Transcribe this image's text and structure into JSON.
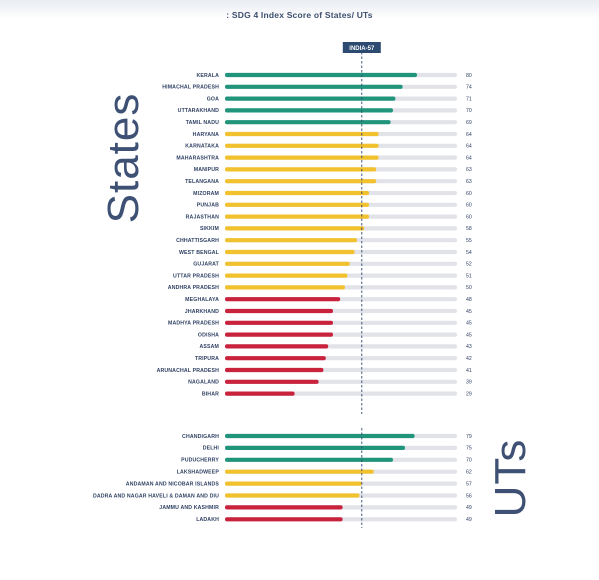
{
  "chart_data": {
    "type": "bar",
    "orientation": "horizontal",
    "title": ": SDG 4 Index Score of States/ UTs",
    "xlim": [
      0,
      100
    ],
    "reference_line": {
      "label": "INDIA-57",
      "value": 57
    },
    "colors": {
      "achiever": "#21957c",
      "front_runner": "#f2c12e",
      "performer": "#c8223d",
      "track": "#e1e3e8",
      "reference": "#2d4a70"
    },
    "groups": [
      {
        "name": "States",
        "categories": [
          "KERALA",
          "HIMACHAL PRADESH",
          "GOA",
          "UTTARAKHAND",
          "TAMIL NADU",
          "HARYANA",
          "KARNATAKA",
          "MAHARASHTRA",
          "MANIPUR",
          "TELANGANA",
          "MIZORAM",
          "PUNJAB",
          "RAJASTHAN",
          "SIKKIM",
          "CHHATTISGARH",
          "WEST BENGAL",
          "GUJARAT",
          "UTTAR PRADESH",
          "ANDHRA PRADESH",
          "MEGHALAYA",
          "JHARKHAND",
          "MADHYA PRADESH",
          "ODISHA",
          "ASSAM",
          "TRIPURA",
          "ARUNACHAL PRADESH",
          "NAGALAND",
          "BIHAR"
        ],
        "values": [
          80,
          74,
          71,
          70,
          69,
          64,
          64,
          64,
          63,
          63,
          60,
          60,
          60,
          58,
          55,
          54,
          52,
          51,
          50,
          48,
          45,
          45,
          45,
          43,
          42,
          41,
          39,
          29
        ]
      },
      {
        "name": "UTs",
        "categories": [
          "CHANDIGARH",
          "DELHI",
          "PUDUCHERRY",
          "LAKSHADWEEP",
          "ANDAMAN AND NICOBAR ISLANDS",
          "DADRA AND NAGAR HAVELI & DAMAN AND DIU",
          "JAMMU AND KASHMIR",
          "LADAKH"
        ],
        "values": [
          79,
          75,
          70,
          62,
          57,
          56,
          49,
          49
        ]
      }
    ]
  }
}
